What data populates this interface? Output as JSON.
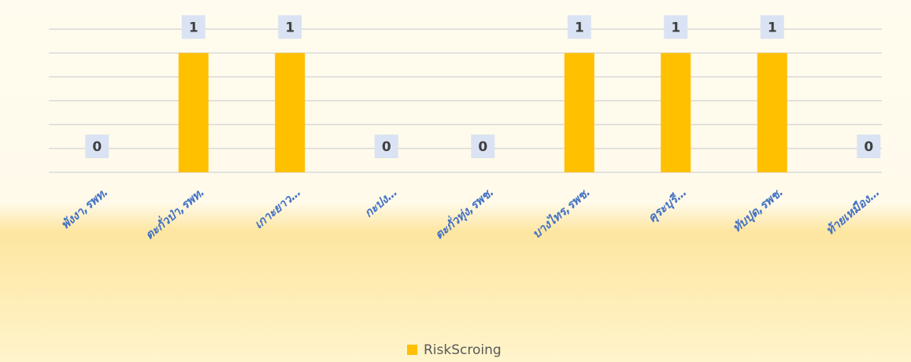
{
  "chart_data": {
    "type": "bar",
    "categories": [
      "พังงา,รพท.",
      "ตะกั่วป่า,รพท.",
      "เกาะยาว…",
      "กะปง…",
      "ตะกั่วทุ่ง,รพช.",
      "บางไทร,รพช.",
      "คุระบุรี…",
      "ทับปุด,รพช.",
      "ท้ายเหมือง…"
    ],
    "series": [
      {
        "name": "RiskScroing",
        "color": "#ffc000",
        "values": [
          0,
          1,
          1,
          0,
          0,
          1,
          1,
          1,
          0
        ]
      }
    ],
    "ylim": [
      0,
      1.2
    ],
    "yticks": [
      0,
      0.2,
      0.4,
      0.6,
      0.8,
      1,
      1.2
    ],
    "grid": true,
    "legend": "bottom"
  }
}
